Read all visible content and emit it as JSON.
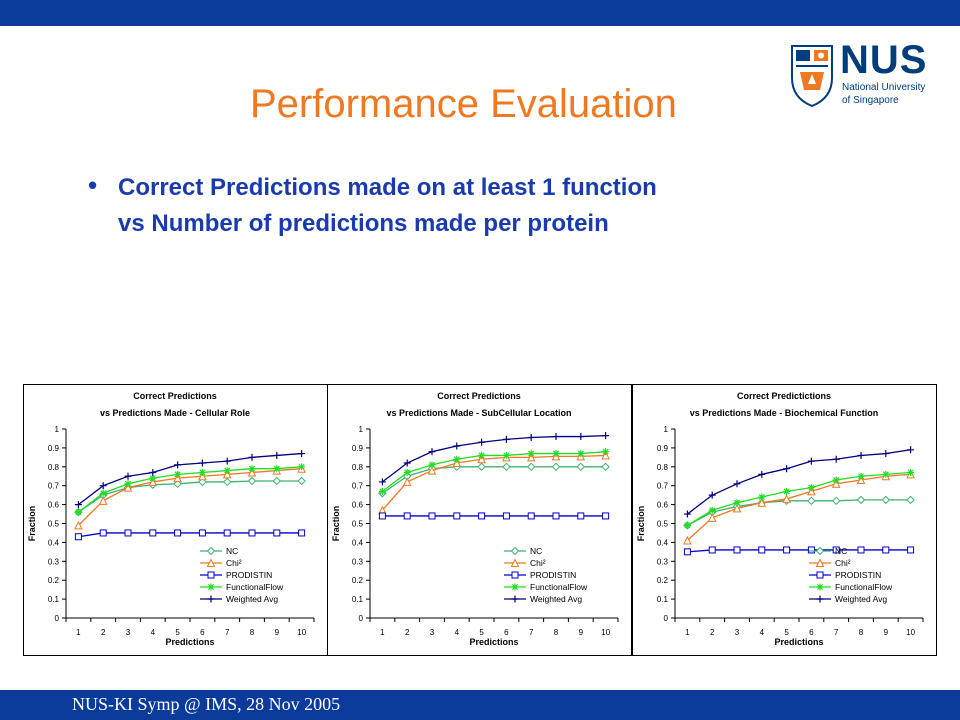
{
  "header": {
    "title": "Performance Evaluation"
  },
  "logo": {
    "name": "NUS",
    "line1": "National University",
    "line2": "of Singapore",
    "color": "#003d7c",
    "accent": "#f07820"
  },
  "bullet": {
    "symbol": "•",
    "line1": "Correct Predictions made on at least 1 function",
    "line2": "vs Number of predictions made per protein"
  },
  "footer": {
    "text": "NUS-KI Symp @ IMS, 28 Nov 2005"
  },
  "colors": {
    "bar": "#0a3a9a",
    "title": "#f07820",
    "bullet": "#1a3ab0"
  },
  "chart_data": [
    {
      "type": "line",
      "title": "Correct Predictions",
      "subtitle": "vs Predictions Made - Cellular Role",
      "xlabel": "Predictions",
      "ylabel": "Fraction",
      "x": [
        1,
        2,
        3,
        4,
        5,
        6,
        7,
        8,
        9,
        10
      ],
      "ylim": [
        0,
        1
      ],
      "yticks": [
        "0",
        "0.1",
        "0.2",
        "0.3",
        "0.4",
        "0.5",
        "0.6",
        "0.7",
        "0.8",
        "0.9",
        "1"
      ],
      "legend_position": "bottom-right",
      "series": [
        {
          "name": "NC",
          "color": "#3cb371",
          "marker": "diamond",
          "values": [
            0.56,
            0.65,
            0.69,
            0.705,
            0.71,
            0.72,
            0.72,
            0.725,
            0.725,
            0.725
          ]
        },
        {
          "name": "Chi²",
          "color": "#f07820",
          "marker": "triangle",
          "values": [
            0.49,
            0.62,
            0.69,
            0.72,
            0.74,
            0.75,
            0.76,
            0.77,
            0.78,
            0.79
          ]
        },
        {
          "name": "PRODISTIN",
          "color": "#0000cc",
          "marker": "square",
          "values": [
            0.43,
            0.45,
            0.45,
            0.45,
            0.45,
            0.45,
            0.45,
            0.45,
            0.45,
            0.45
          ]
        },
        {
          "name": "FunctionalFlow",
          "color": "#22dd22",
          "marker": "star",
          "values": [
            0.56,
            0.66,
            0.71,
            0.74,
            0.76,
            0.77,
            0.78,
            0.79,
            0.79,
            0.8
          ]
        },
        {
          "name": "Weighted Avg",
          "color": "#000080",
          "marker": "plus",
          "values": [
            0.6,
            0.7,
            0.75,
            0.77,
            0.81,
            0.82,
            0.83,
            0.85,
            0.86,
            0.87
          ]
        }
      ]
    },
    {
      "type": "line",
      "title": "Correct Predictions",
      "subtitle": "vs Predictions Made - SubCellular Location",
      "xlabel": "Predictions",
      "ylabel": "Fraction",
      "x": [
        1,
        2,
        3,
        4,
        5,
        6,
        7,
        8,
        9,
        10
      ],
      "ylim": [
        0,
        1
      ],
      "yticks": [
        "0",
        "0.1",
        "0.2",
        "0.3",
        "0.4",
        "0.5",
        "0.6",
        "0.7",
        "0.8",
        "0.9",
        "1"
      ],
      "legend_position": "bottom-right",
      "series": [
        {
          "name": "NC",
          "color": "#3cb371",
          "marker": "diamond",
          "values": [
            0.66,
            0.75,
            0.79,
            0.8,
            0.8,
            0.8,
            0.8,
            0.8,
            0.8,
            0.8
          ]
        },
        {
          "name": "Chi²",
          "color": "#f07820",
          "marker": "triangle",
          "values": [
            0.57,
            0.72,
            0.78,
            0.82,
            0.84,
            0.85,
            0.85,
            0.855,
            0.855,
            0.86
          ]
        },
        {
          "name": "PRODISTIN",
          "color": "#0000cc",
          "marker": "square",
          "values": [
            0.54,
            0.54,
            0.54,
            0.54,
            0.54,
            0.54,
            0.54,
            0.54,
            0.54,
            0.54
          ]
        },
        {
          "name": "FunctionalFlow",
          "color": "#22dd22",
          "marker": "star",
          "values": [
            0.67,
            0.77,
            0.81,
            0.84,
            0.86,
            0.86,
            0.87,
            0.87,
            0.87,
            0.88
          ]
        },
        {
          "name": "Weighted Avg",
          "color": "#000080",
          "marker": "plus",
          "values": [
            0.72,
            0.82,
            0.88,
            0.91,
            0.93,
            0.945,
            0.955,
            0.96,
            0.96,
            0.965
          ]
        }
      ]
    },
    {
      "type": "line",
      "title": "Correct Predictictions",
      "subtitle": "vs Predictions Made - Biochemical Function",
      "xlabel": "Predictions",
      "ylabel": "Fraction",
      "x": [
        1,
        2,
        3,
        4,
        5,
        6,
        7,
        8,
        9,
        10
      ],
      "ylim": [
        0,
        1
      ],
      "yticks": [
        "0",
        "0.1",
        "0.2",
        "0.3",
        "0.4",
        "0.5",
        "0.6",
        "0.7",
        "0.8",
        "0.9",
        "1"
      ],
      "legend_position": "bottom-right",
      "series": [
        {
          "name": "NC",
          "color": "#3cb371",
          "marker": "diamond",
          "values": [
            0.49,
            0.56,
            0.59,
            0.61,
            0.62,
            0.62,
            0.62,
            0.625,
            0.625,
            0.625
          ]
        },
        {
          "name": "Chi²",
          "color": "#f07820",
          "marker": "triangle",
          "values": [
            0.41,
            0.53,
            0.58,
            0.61,
            0.63,
            0.67,
            0.71,
            0.73,
            0.75,
            0.76
          ]
        },
        {
          "name": "PRODISTIN",
          "color": "#0000cc",
          "marker": "square",
          "values": [
            0.35,
            0.36,
            0.36,
            0.36,
            0.36,
            0.36,
            0.36,
            0.36,
            0.36,
            0.36
          ]
        },
        {
          "name": "FunctionalFlow",
          "color": "#22dd22",
          "marker": "star",
          "values": [
            0.49,
            0.57,
            0.61,
            0.64,
            0.67,
            0.69,
            0.73,
            0.75,
            0.76,
            0.77
          ]
        },
        {
          "name": "Weighted Avg",
          "color": "#000080",
          "marker": "plus",
          "values": [
            0.55,
            0.65,
            0.71,
            0.76,
            0.79,
            0.83,
            0.84,
            0.86,
            0.87,
            0.89
          ]
        }
      ]
    }
  ]
}
